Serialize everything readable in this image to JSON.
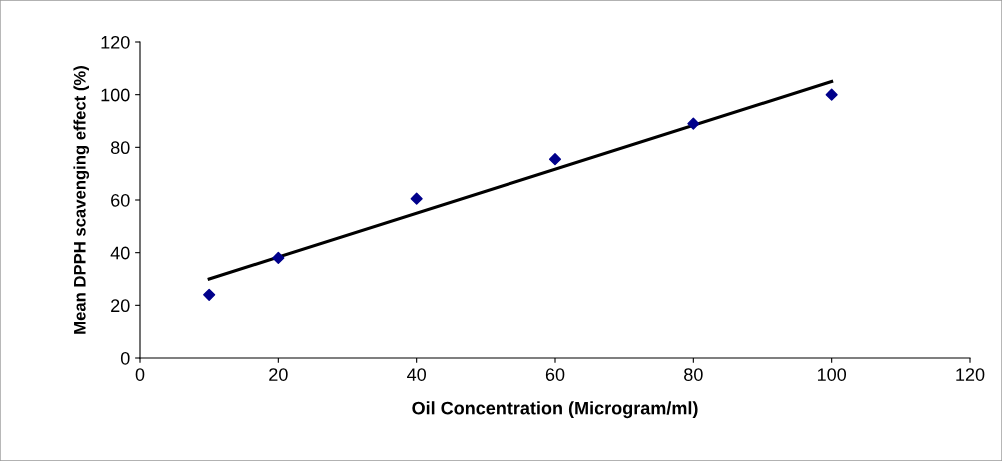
{
  "chart_data": {
    "type": "scatter",
    "xlabel": "Oil Concentration (Microgram/ml)",
    "ylabel": "Mean DPPH scavenging effect (%)",
    "series": [
      {
        "color": "#00008b",
        "marker": "diamond",
        "x": [
          10,
          20,
          40,
          60,
          80,
          100
        ],
        "values": [
          24,
          38,
          60.5,
          75.5,
          89,
          100
        ]
      },
      {
        "type": "line",
        "color": "#000000",
        "line_style": "solid",
        "x": [
          10,
          100
        ],
        "values": [
          30,
          105
        ]
      }
    ],
    "xlim": [
      0,
      120
    ],
    "xticks": [
      0,
      20,
      40,
      60,
      80,
      100,
      120
    ],
    "ylim": [
      0,
      120
    ],
    "yticks": [
      0,
      20,
      40,
      60,
      80,
      100,
      120
    ],
    "grid": false,
    "legend": false
  }
}
